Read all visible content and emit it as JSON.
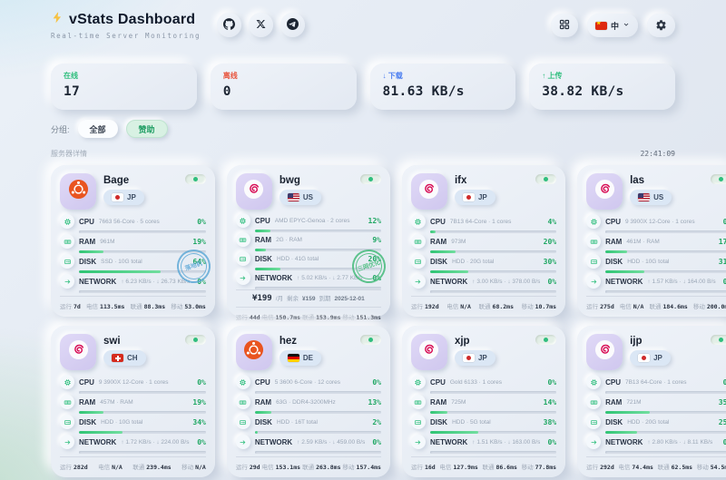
{
  "header": {
    "title": "vStats Dashboard",
    "subtitle": "Real-time Server Monitoring",
    "language": "中"
  },
  "stats": [
    {
      "label": "在线",
      "value": "17",
      "color": "green"
    },
    {
      "label": "离线",
      "value": "0",
      "color": "red"
    },
    {
      "label": "↓ 下载",
      "value": "81.63 KB/s",
      "color": "blue"
    },
    {
      "label": "↑ 上传",
      "value": "38.82 KB/s",
      "color": "green"
    }
  ],
  "filters": {
    "label": "分组:",
    "options": [
      {
        "label": "全部",
        "active": true
      },
      {
        "label": "赞助",
        "active": false
      }
    ]
  },
  "section": {
    "title": "服务器详情",
    "timestamp": "22:41:09"
  },
  "theme": {
    "accent_green": "#2fbe7d",
    "offline_red": "#e8553e",
    "download_blue": "#4a7df0",
    "stamp_blue": "#58a6d6",
    "stamp_green": "#3bb873"
  },
  "servers": [
    {
      "name": "Bage",
      "os": "ubuntu",
      "flag": "jp",
      "country": "JP",
      "stamp": {
        "text": "落地机",
        "color": "#58a6d6"
      },
      "metrics": [
        {
          "label": "CPU",
          "detail": "7663 56-Core · 5 cores",
          "percent": 0
        },
        {
          "label": "RAM",
          "detail": "961M",
          "percent": 19
        },
        {
          "label": "DISK",
          "detail": "SSD · 10G total",
          "percent": 64
        },
        {
          "label": "NETWORK",
          "detail": "↑ 6.23 KB/s · ↓ 26.73 KB/s",
          "percent": 0
        }
      ],
      "price": null,
      "footer": [
        {
          "label": "运行",
          "value": "7d"
        },
        {
          "label": "电信",
          "value": "113.5ms"
        },
        {
          "label": "联通",
          "value": "88.3ms"
        },
        {
          "label": "移动",
          "value": "53.0ms"
        }
      ]
    },
    {
      "name": "bwg",
      "os": "debian",
      "flag": "us",
      "country": "US",
      "stamp": {
        "text": "三网优化",
        "color": "#3bb873"
      },
      "metrics": [
        {
          "label": "CPU",
          "detail": "AMD EPYC-Genoa · 2 cores",
          "percent": 12
        },
        {
          "label": "RAM",
          "detail": "2G · RAM",
          "percent": 9
        },
        {
          "label": "DISK",
          "detail": "HDD · 41G total",
          "percent": 20
        },
        {
          "label": "NETWORK",
          "detail": "↑ 5.02 KB/s · ↓ 2.77 KB/s",
          "percent": 0
        }
      ],
      "price": {
        "amount": "¥199",
        "period": "/月",
        "remain_label": "剩余",
        "remain": "¥159",
        "expire_label": "到期",
        "expire": "2025-12-01"
      },
      "footer": [
        {
          "label": "运行",
          "value": "44d"
        },
        {
          "label": "电信",
          "value": "150.7ms"
        },
        {
          "label": "联通",
          "value": "153.9ms"
        },
        {
          "label": "移动",
          "value": "151.3ms"
        }
      ]
    },
    {
      "name": "ifx",
      "os": "debian",
      "flag": "jp",
      "country": "JP",
      "stamp": null,
      "metrics": [
        {
          "label": "CPU",
          "detail": "7B13 64-Core · 1 cores",
          "percent": 4
        },
        {
          "label": "RAM",
          "detail": "973M",
          "percent": 20
        },
        {
          "label": "DISK",
          "detail": "HDD · 20G total",
          "percent": 30
        },
        {
          "label": "NETWORK",
          "detail": "↑ 3.00 KB/s · ↓ 378.00 B/s",
          "percent": 0
        }
      ],
      "price": null,
      "footer": [
        {
          "label": "运行",
          "value": "192d"
        },
        {
          "label": "电信",
          "value": "N/A"
        },
        {
          "label": "联通",
          "value": "68.2ms"
        },
        {
          "label": "移动",
          "value": "10.7ms"
        }
      ]
    },
    {
      "name": "las",
      "os": "debian",
      "flag": "us",
      "country": "US",
      "stamp": null,
      "metrics": [
        {
          "label": "CPU",
          "detail": "9 3900X 12-Core · 1 cores",
          "percent": 0
        },
        {
          "label": "RAM",
          "detail": "461M · RAM",
          "percent": 17
        },
        {
          "label": "DISK",
          "detail": "HDD · 10G total",
          "percent": 31
        },
        {
          "label": "NETWORK",
          "detail": "↑ 1.57 KB/s · ↓ 164.00 B/s",
          "percent": 0
        }
      ],
      "price": null,
      "footer": [
        {
          "label": "运行",
          "value": "275d"
        },
        {
          "label": "电信",
          "value": "N/A"
        },
        {
          "label": "联通",
          "value": "184.6ms"
        },
        {
          "label": "移动",
          "value": "200.0ms"
        }
      ]
    },
    {
      "name": "swi",
      "os": "debian",
      "flag": "ch",
      "country": "CH",
      "stamp": null,
      "metrics": [
        {
          "label": "CPU",
          "detail": "9 3900X 12-Core · 1 cores",
          "percent": 0
        },
        {
          "label": "RAM",
          "detail": "457M · RAM",
          "percent": 19
        },
        {
          "label": "DISK",
          "detail": "HDD · 10G total",
          "percent": 34
        },
        {
          "label": "NETWORK",
          "detail": "↑ 1.72 KB/s · ↓ 224.00 B/s",
          "percent": 0
        }
      ],
      "price": null,
      "footer": [
        {
          "label": "运行",
          "value": "282d"
        },
        {
          "label": "电信",
          "value": "N/A"
        },
        {
          "label": "联通",
          "value": "239.4ms"
        },
        {
          "label": "移动",
          "value": "N/A"
        }
      ]
    },
    {
      "name": "hez",
      "os": "ubuntu",
      "flag": "de",
      "country": "DE",
      "stamp": null,
      "metrics": [
        {
          "label": "CPU",
          "detail": "5 3600 6-Core · 12 cores",
          "percent": 0
        },
        {
          "label": "RAM",
          "detail": "63G · DDR4-3200MHz",
          "percent": 13
        },
        {
          "label": "DISK",
          "detail": "HDD · 16T total",
          "percent": 2
        },
        {
          "label": "NETWORK",
          "detail": "↑ 2.59 KB/s · ↓ 459.00 B/s",
          "percent": 0
        }
      ],
      "price": null,
      "footer": [
        {
          "label": "运行",
          "value": "29d"
        },
        {
          "label": "电信",
          "value": "153.1ms"
        },
        {
          "label": "联通",
          "value": "263.8ms"
        },
        {
          "label": "移动",
          "value": "157.4ms"
        }
      ]
    },
    {
      "name": "xjp",
      "os": "debian",
      "flag": "jp",
      "country": "JP",
      "stamp": null,
      "metrics": [
        {
          "label": "CPU",
          "detail": "Gold 6133 · 1 cores",
          "percent": 0
        },
        {
          "label": "RAM",
          "detail": "725M",
          "percent": 14
        },
        {
          "label": "DISK",
          "detail": "HDD · 5G total",
          "percent": 38
        },
        {
          "label": "NETWORK",
          "detail": "↑ 1.51 KB/s · ↓ 163.00 B/s",
          "percent": 0
        }
      ],
      "price": null,
      "footer": [
        {
          "label": "运行",
          "value": "16d"
        },
        {
          "label": "电信",
          "value": "127.9ms"
        },
        {
          "label": "联通",
          "value": "86.6ms"
        },
        {
          "label": "移动",
          "value": "77.8ms"
        }
      ]
    },
    {
      "name": "ijp",
      "os": "debian",
      "flag": "jp",
      "country": "JP",
      "stamp": null,
      "metrics": [
        {
          "label": "CPU",
          "detail": "7B13 64-Core · 1 cores",
          "percent": 0
        },
        {
          "label": "RAM",
          "detail": "721M",
          "percent": 35
        },
        {
          "label": "DISK",
          "detail": "HDD · 20G total",
          "percent": 25
        },
        {
          "label": "NETWORK",
          "detail": "↑ 2.80 KB/s · ↓ 8.11 KB/s",
          "percent": 0
        }
      ],
      "price": null,
      "footer": [
        {
          "label": "运行",
          "value": "292d"
        },
        {
          "label": "电信",
          "value": "74.4ms"
        },
        {
          "label": "联通",
          "value": "62.5ms"
        },
        {
          "label": "移动",
          "value": "54.5ms"
        }
      ]
    }
  ]
}
